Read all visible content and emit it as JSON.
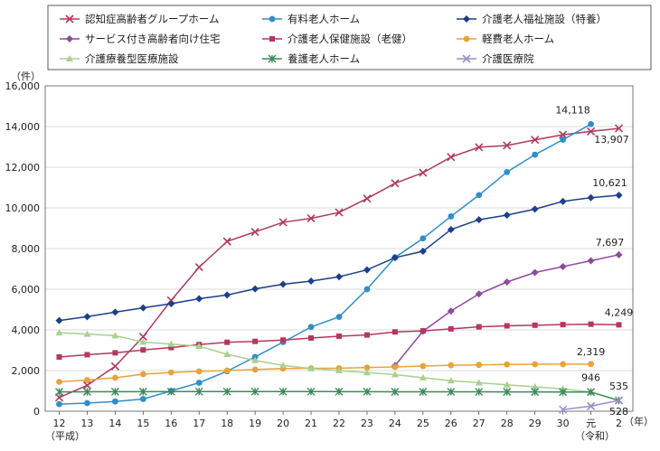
{
  "chart_data": {
    "type": "line",
    "yunit": "（件）",
    "xunit": "（年）",
    "era_heisei": "（平成）",
    "era_reiwa": "（令和）",
    "ylim": [
      0,
      16000
    ],
    "yticks": [
      "0",
      "2,000",
      "4,000",
      "6,000",
      "8,000",
      "10,000",
      "12,000",
      "14,000",
      "16,000"
    ],
    "categories": [
      "12",
      "13",
      "14",
      "15",
      "16",
      "17",
      "18",
      "19",
      "20",
      "21",
      "22",
      "23",
      "24",
      "25",
      "26",
      "27",
      "28",
      "29",
      "30",
      "元",
      "2"
    ],
    "grid": true,
    "legend_position": "top",
    "series": [
      {
        "name": "認知症高齢者グループホーム",
        "color": "#b03a5b",
        "marker": "x",
        "values": [
          675,
          1273,
          2210,
          3665,
          5449,
          7084,
          8350,
          8818,
          9292,
          9484,
          9774,
          10457,
          11208,
          11729,
          12497,
          12983,
          13069,
          13346,
          13595,
          13760,
          13907
        ],
        "end_label": "13,907"
      },
      {
        "name": "有料老人ホーム",
        "color": "#2f8fc9",
        "marker": "circle",
        "values": [
          350,
          400,
          480,
          600,
          1000,
          1400,
          1968,
          2671,
          3400,
          4144,
          4640,
          5999,
          7563,
          8499,
          9581,
          10627,
          11762,
          12616,
          13354,
          14118,
          null
        ],
        "end_label": "14,118"
      },
      {
        "name": "介護老人福祉施設（特養）",
        "color": "#1c3f8c",
        "marker": "diamond",
        "values": [
          4463,
          4651,
          4870,
          5084,
          5291,
          5535,
          5716,
          6015,
          6242,
          6400,
          6611,
          6952,
          7552,
          7865,
          8935,
          9419,
          9645,
          9939,
          10319,
          10502,
          10621
        ],
        "end_label": "10,621"
      },
      {
        "name": "サービス付き高齢者向け住宅",
        "color": "#8e4a9c",
        "marker": "diamond",
        "values": [
          null,
          null,
          null,
          null,
          null,
          null,
          null,
          null,
          null,
          null,
          null,
          null,
          2245,
          3934,
          4928,
          5766,
          6355,
          6823,
          7113,
          7402,
          7697
        ],
        "end_label": "7,697"
      },
      {
        "name": "介護老人保健施設（老健）",
        "color": "#b5375e",
        "marker": "square",
        "values": [
          2667,
          2779,
          2872,
          3013,
          3131,
          3278,
          3391,
          3435,
          3500,
          3598,
          3689,
          3750,
          3900,
          3950,
          4050,
          4150,
          4200,
          4230,
          4260,
          4280,
          4249
        ],
        "end_label": "4,249"
      },
      {
        "name": "軽費老人ホーム",
        "color": "#e8a33a",
        "marker": "circle",
        "values": [
          1444,
          1532,
          1645,
          1822,
          1906,
          1962,
          2000,
          2050,
          2100,
          2110,
          2114,
          2150,
          2177,
          2220,
          2260,
          2280,
          2300,
          2310,
          2315,
          2319,
          null
        ],
        "end_label": "2,319"
      },
      {
        "name": "介護療養型医療施設",
        "color": "#a9d18e",
        "marker": "triangle",
        "values": [
          3862,
          3792,
          3717,
          3400,
          3300,
          3200,
          2800,
          2500,
          2252,
          2100,
          2000,
          1900,
          1800,
          1650,
          1500,
          1400,
          1300,
          1200,
          1100,
          946,
          null
        ],
        "end_label": "946"
      },
      {
        "name": "養護老人ホーム",
        "color": "#3a8a5a",
        "marker": "star",
        "values": [
          950,
          955,
          960,
          962,
          964,
          964,
          964,
          964,
          964,
          964,
          964,
          962,
          958,
          956,
          953,
          953,
          952,
          948,
          946,
          944,
          528
        ],
        "end_label": "528"
      },
      {
        "name": "介護医療院",
        "color": "#9b8fc7",
        "marker": "x",
        "values": [
          null,
          null,
          null,
          null,
          null,
          null,
          null,
          null,
          null,
          null,
          null,
          null,
          null,
          null,
          null,
          null,
          null,
          null,
          80,
          250,
          535
        ],
        "end_label": "535"
      }
    ]
  }
}
